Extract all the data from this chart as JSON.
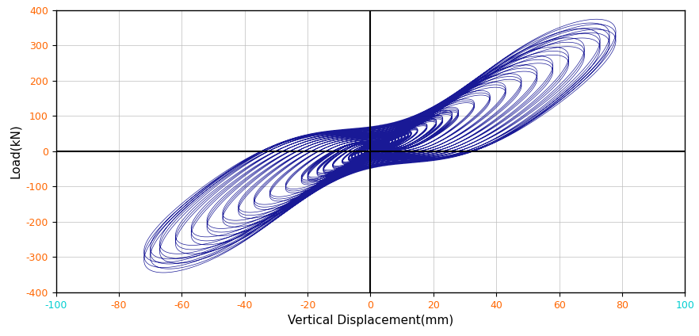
{
  "xlabel": "Vertical Displacement(mm)",
  "ylabel": "Load(kN)",
  "xlim": [
    -100,
    100
  ],
  "ylim": [
    -400,
    400
  ],
  "xticks": [
    -100,
    -80,
    -60,
    -40,
    -20,
    0,
    20,
    40,
    60,
    80,
    100
  ],
  "yticks": [
    -400,
    -300,
    -200,
    -100,
    0,
    100,
    200,
    300,
    400
  ],
  "line_color": "#00008B",
  "line_width": 0.5,
  "bg_color": "#ffffff",
  "grid_color": "#bbbbbb",
  "xlabel_color": "#000000",
  "ylabel_color": "#000000",
  "xtick_color_normal": "#FF6600",
  "xtick_color_edge": "#00CED1",
  "ytick_color": "#FF6600",
  "vline_color": "#000000",
  "hline_color": "#000000",
  "axis_label_fontsize": 11,
  "tick_fontsize": 9
}
